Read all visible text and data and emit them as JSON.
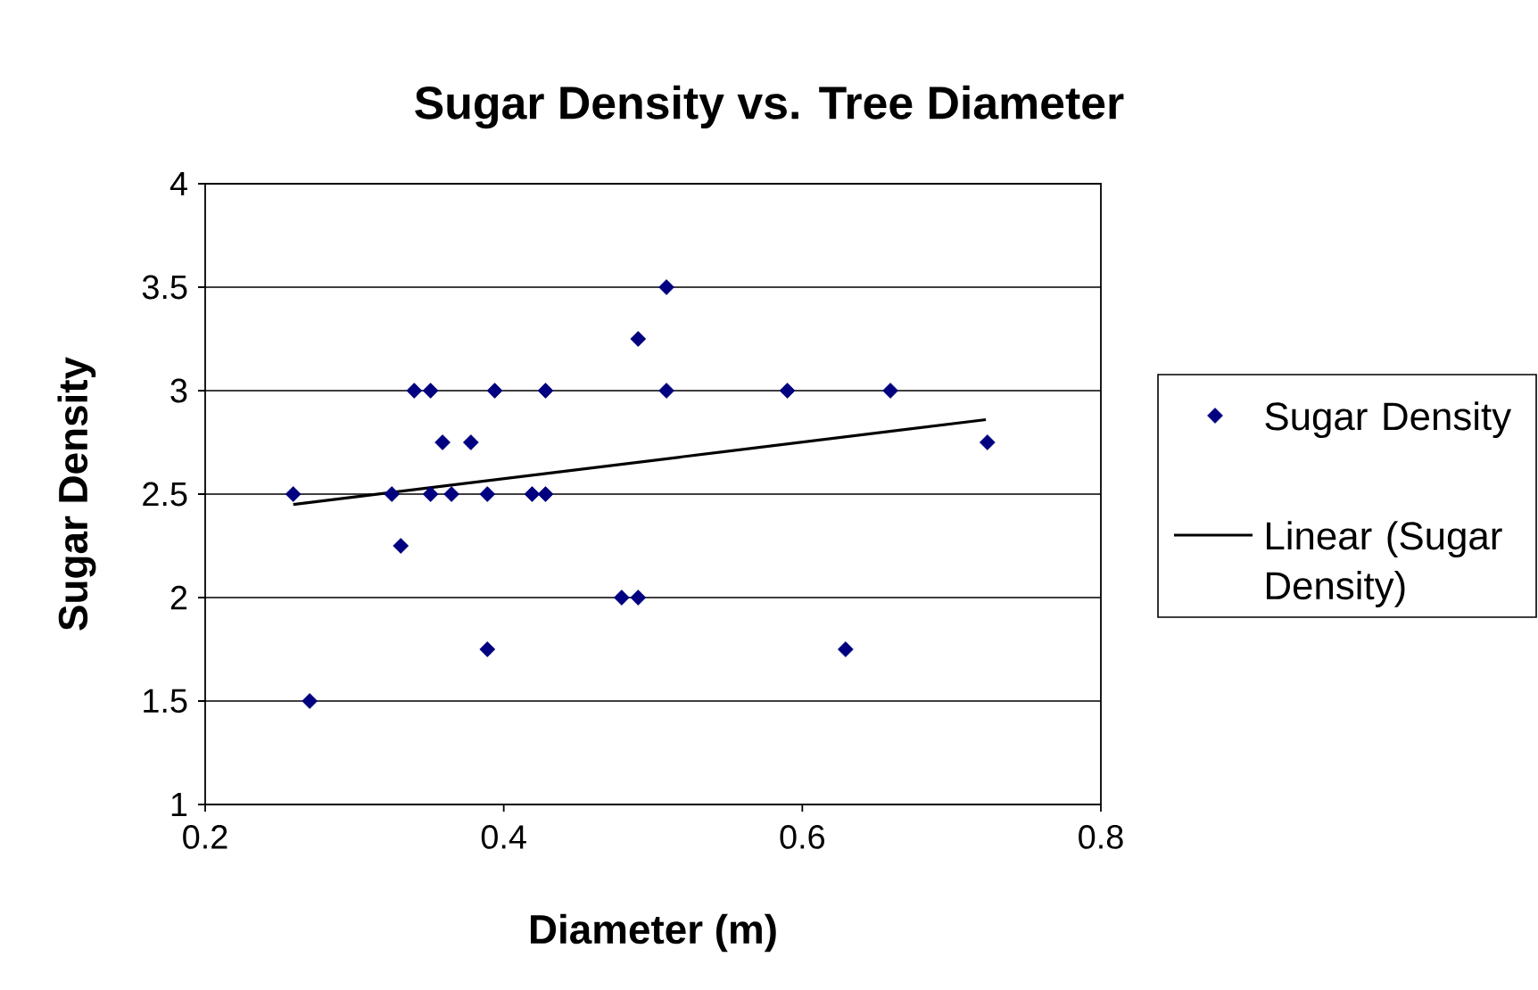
{
  "chart_data": {
    "type": "scatter",
    "title": "Sugar Density vs. Tree Diameter",
    "xlabel": "Diameter (m)",
    "ylabel": "Sugar Density",
    "xlim": [
      0.2,
      0.8
    ],
    "xticks": [
      0.2,
      0.4,
      0.6,
      0.8
    ],
    "ylim": [
      1,
      4
    ],
    "yticks": [
      1,
      1.5,
      2,
      2.5,
      3,
      3.5,
      4
    ],
    "grid": "y",
    "legend": "right",
    "series": [
      {
        "name": "Sugar Density",
        "type": "scatter",
        "marker": "diamond",
        "color": "#000080",
        "x": [
          0.259,
          0.27,
          0.325,
          0.331,
          0.34,
          0.351,
          0.351,
          0.359,
          0.365,
          0.378,
          0.389,
          0.389,
          0.394,
          0.419,
          0.428,
          0.428,
          0.479,
          0.49,
          0.49,
          0.509,
          0.509,
          0.59,
          0.629,
          0.659,
          0.724
        ],
        "values": [
          2.5,
          1.5,
          2.5,
          2.25,
          3,
          3,
          2.5,
          2.75,
          2.5,
          2.75,
          2.5,
          1.75,
          3,
          2.5,
          2.5,
          3,
          2,
          2,
          3.25,
          3.5,
          3,
          3,
          1.75,
          3,
          2.75
        ]
      },
      {
        "name": "Linear (Sugar Density)",
        "type": "line",
        "color": "#000000",
        "line_style": "solid",
        "x": [
          0.259,
          0.723
        ],
        "values": [
          2.45,
          2.86
        ]
      }
    ]
  }
}
